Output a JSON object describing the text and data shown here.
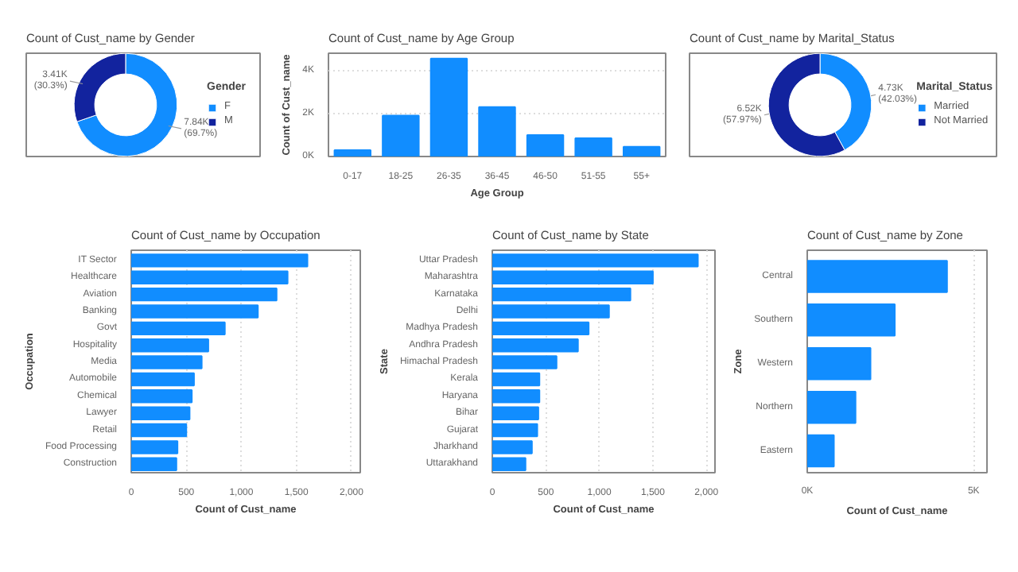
{
  "chart_data": [
    {
      "type": "donut",
      "title": "Count of Cust_name by Gender",
      "legend_title": "Gender",
      "legend": "right",
      "categories": [
        "F",
        "M"
      ],
      "values": [
        7840,
        3410
      ],
      "colors": [
        "#118dff",
        "#12239e"
      ],
      "value_labels": [
        "7.84K (69.7%)",
        "3.41K (30.3%)"
      ]
    },
    {
      "type": "bar",
      "title": "Count of Cust_name by Age Group",
      "xlabel": "Age Group",
      "ylabel": "Count of Cust_name",
      "grid": "y",
      "color": "#118dff",
      "categories": [
        "0-17",
        "18-25",
        "26-35",
        "36-45",
        "46-50",
        "51-55",
        "55+"
      ],
      "values": [
        300,
        1900,
        4550,
        2300,
        1000,
        850,
        450
      ],
      "ylim": [
        0,
        4800
      ],
      "yticks": [
        {
          "value": 0,
          "label": "0K"
        },
        {
          "value": 2000,
          "label": "2K"
        },
        {
          "value": 4000,
          "label": "4K"
        }
      ]
    },
    {
      "type": "donut",
      "title": "Count of Cust_name by Marital_Status",
      "legend_title": "Marital_Status",
      "legend": "right",
      "categories": [
        "Married",
        "Not Married"
      ],
      "values": [
        4730,
        6520
      ],
      "colors": [
        "#118dff",
        "#12239e"
      ],
      "value_labels": [
        "4.73K (42.03%)",
        "6.52K (57.97%)"
      ]
    },
    {
      "type": "bar",
      "orientation": "horizontal",
      "title": "Count of Cust_name by Occupation",
      "xlabel": "Count of Cust_name",
      "ylabel": "Occupation",
      "grid": "x",
      "color": "#118dff",
      "categories": [
        "IT Sector",
        "Healthcare",
        "Aviation",
        "Banking",
        "Govt",
        "Hospitality",
        "Media",
        "Automobile",
        "Chemical",
        "Lawyer",
        "Retail",
        "Food Processing",
        "Construction"
      ],
      "values": [
        1600,
        1420,
        1320,
        1150,
        850,
        700,
        640,
        570,
        550,
        530,
        500,
        420,
        410
      ],
      "xlim": [
        0,
        2080
      ],
      "xticks": [
        0,
        500,
        {
          "value": 1000,
          "label": "1,000"
        },
        {
          "value": 1500,
          "label": "1,500"
        },
        {
          "value": 2000,
          "label": "2,000"
        }
      ]
    },
    {
      "type": "bar",
      "orientation": "horizontal",
      "title": "Count of Cust_name by State",
      "xlabel": "Count of Cust_name",
      "ylabel": "State",
      "grid": "x",
      "color": "#118dff",
      "categories": [
        "Uttar Pradesh",
        "Maharashtra",
        "Karnataka",
        "Delhi",
        "Madhya Pradesh",
        "Andhra Pradesh",
        "Himachal Pradesh",
        "Kerala",
        "Haryana",
        "Bihar",
        "Gujarat",
        "Jharkhand",
        "Uttarakhand"
      ],
      "values": [
        1920,
        1500,
        1290,
        1090,
        900,
        800,
        600,
        440,
        440,
        430,
        420,
        370,
        310
      ],
      "xlim": [
        0,
        2080
      ],
      "xticks": [
        0,
        500,
        {
          "value": 1000,
          "label": "1,000"
        },
        {
          "value": 1500,
          "label": "1,500"
        },
        {
          "value": 2000,
          "label": "2,000"
        }
      ]
    },
    {
      "type": "bar",
      "orientation": "horizontal",
      "title": "Count of Cust_name by Zone",
      "xlabel": "Count of Cust_name",
      "ylabel": "Zone",
      "grid": "x",
      "color": "#118dff",
      "categories": [
        "Central",
        "Southern",
        "Western",
        "Northern",
        "Eastern"
      ],
      "values": [
        4200,
        2630,
        1900,
        1450,
        800
      ],
      "xlim": [
        0,
        5400
      ],
      "xticks": [
        {
          "value": 0,
          "label": "0K"
        },
        {
          "value": 5000,
          "label": "5K"
        }
      ]
    }
  ]
}
